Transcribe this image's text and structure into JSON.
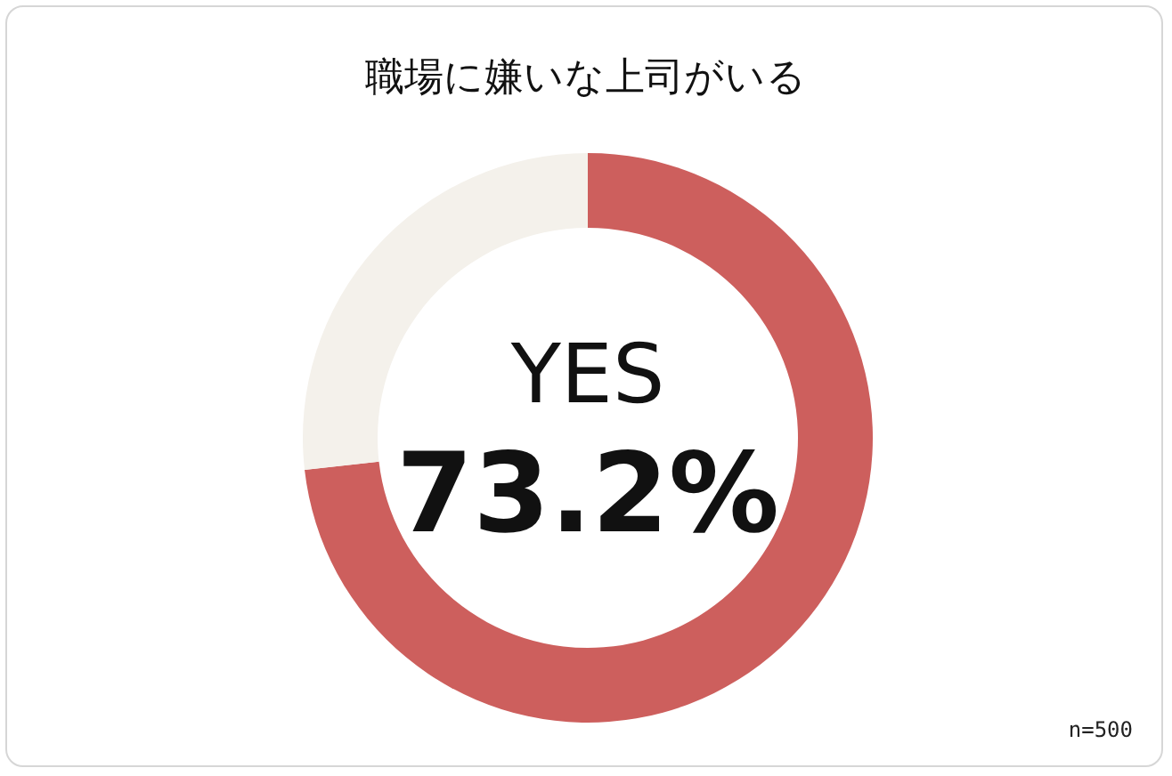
{
  "chart_data": {
    "type": "donut",
    "title": "職場に嫌いな上司がいる",
    "categories": [
      "YES",
      null
    ],
    "values": [
      73.2,
      26.8
    ],
    "colors": [
      "#cd5f5d",
      "#f4f1eb"
    ],
    "value_labels": [
      "73.2%",
      null
    ],
    "annotations": [
      "n=500"
    ],
    "legend": false
  }
}
